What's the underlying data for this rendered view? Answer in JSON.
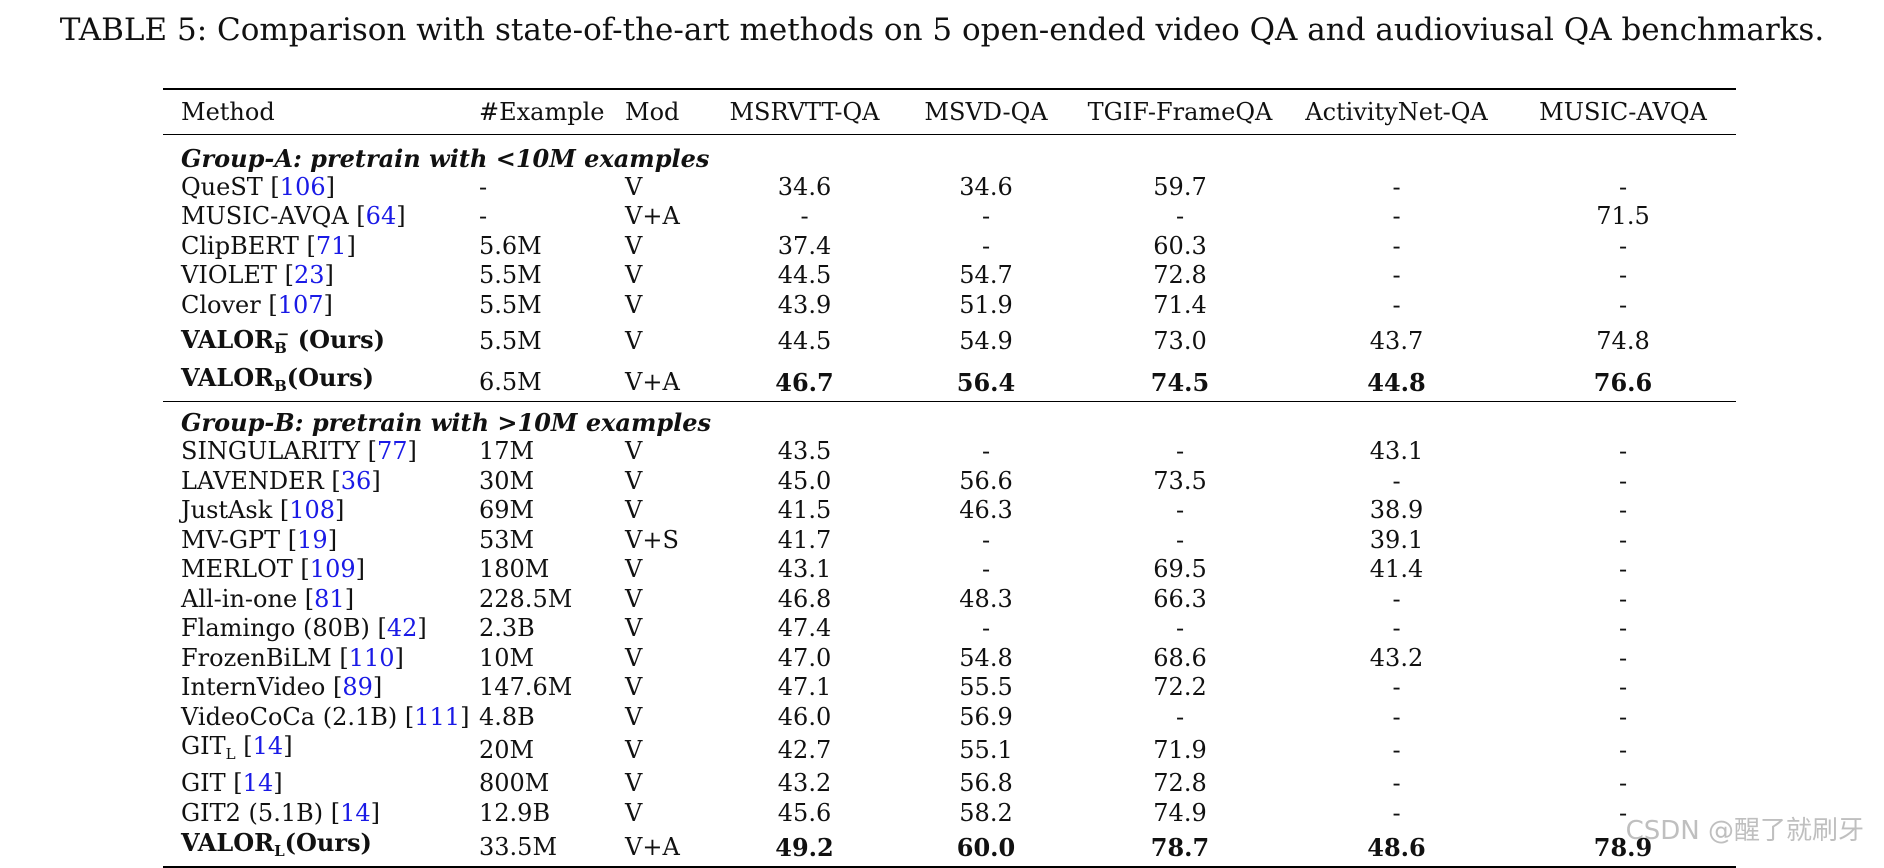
{
  "caption": "TABLE 5: Comparison with state-of-the-art methods on 5 open-ended video QA and audioviusal QA benchmarks.",
  "headers": [
    "Method",
    "#Example",
    "Mod",
    "MSRVTT-QA",
    "MSVD-QA",
    "TGIF-FrameQA",
    "ActivityNet-QA",
    "MUSIC-AVQA"
  ],
  "group_a": {
    "title": "Group-A: pretrain with <10M examples",
    "rows": [
      {
        "name": "QueST",
        "ref": "106",
        "example": "-",
        "mod": "V",
        "vals": [
          "34.6",
          "34.6",
          "59.7",
          "-",
          "-"
        ]
      },
      {
        "name": "MUSIC-AVQA",
        "ref": "64",
        "example": "-",
        "mod": "V+A",
        "vals": [
          "-",
          "-",
          "-",
          "-",
          "71.5"
        ]
      },
      {
        "name": "ClipBERT",
        "ref": "71",
        "example": "5.6M",
        "mod": "V",
        "vals": [
          "37.4",
          "-",
          "60.3",
          "-",
          "-"
        ]
      },
      {
        "name": "VIOLET",
        "ref": "23",
        "example": "5.5M",
        "mod": "V",
        "vals": [
          "44.5",
          "54.7",
          "72.8",
          "-",
          "-"
        ]
      },
      {
        "name": "Clover",
        "ref": "107",
        "example": "5.5M",
        "mod": "V",
        "vals": [
          "43.9",
          "51.9",
          "71.4",
          "-",
          "-"
        ]
      }
    ],
    "ours_minus": {
      "name": "VALOR",
      "sub": "B",
      "sup": "−",
      "suffix": " (Ours)",
      "example": "5.5M",
      "mod": "V",
      "vals": [
        "44.5",
        "54.9",
        "73.0",
        "43.7",
        "74.8"
      ]
    },
    "ours": {
      "name": "VALOR",
      "sub": "B",
      "suffix": "(Ours)",
      "example": "6.5M",
      "mod": "V+A",
      "vals": [
        "46.7",
        "56.4",
        "74.5",
        "44.8",
        "76.6"
      ]
    }
  },
  "group_b": {
    "title": "Group-B: pretrain with >10M examples",
    "rows": [
      {
        "name": "SINGULARITY",
        "ref": "77",
        "example": "17M",
        "mod": "V",
        "vals": [
          "43.5",
          "-",
          "-",
          "43.1",
          "-"
        ]
      },
      {
        "name": "LAVENDER",
        "ref": "36",
        "example": "30M",
        "mod": "V",
        "vals": [
          "45.0",
          "56.6",
          "73.5",
          "-",
          "-"
        ]
      },
      {
        "name": "JustAsk",
        "ref": "108",
        "example": "69M",
        "mod": "V",
        "vals": [
          "41.5",
          "46.3",
          "-",
          "38.9",
          "-"
        ]
      },
      {
        "name": "MV-GPT",
        "ref": "19",
        "example": "53M",
        "mod": "V+S",
        "vals": [
          "41.7",
          "-",
          "-",
          "39.1",
          "-"
        ]
      },
      {
        "name": "MERLOT",
        "ref": "109",
        "example": "180M",
        "mod": "V",
        "vals": [
          "43.1",
          "-",
          "69.5",
          "41.4",
          "-"
        ]
      },
      {
        "name": "All-in-one",
        "ref": "81",
        "example": "228.5M",
        "mod": "V",
        "vals": [
          "46.8",
          "48.3",
          "66.3",
          "-",
          "-"
        ]
      },
      {
        "name": "Flamingo (80B)",
        "ref": "42",
        "example": "2.3B",
        "mod": "V",
        "vals": [
          "47.4",
          "-",
          "-",
          "-",
          "-"
        ]
      },
      {
        "name": "FrozenBiLM",
        "ref": "110",
        "example": "10M",
        "mod": "V",
        "vals": [
          "47.0",
          "54.8",
          "68.6",
          "43.2",
          "-"
        ]
      },
      {
        "name": "InternVideo",
        "ref": "89",
        "example": "147.6M",
        "mod": "V",
        "vals": [
          "47.1",
          "55.5",
          "72.2",
          "-",
          "-"
        ]
      },
      {
        "name": "VideoCoCa (2.1B)",
        "ref": "111",
        "example": "4.8B",
        "mod": "V",
        "vals": [
          "46.0",
          "56.9",
          "-",
          "-",
          "-"
        ]
      },
      {
        "name": "GIT",
        "sub": "L",
        "ref": "14",
        "example": "20M",
        "mod": "V",
        "vals": [
          "42.7",
          "55.1",
          "71.9",
          "-",
          "-"
        ]
      },
      {
        "name": "GIT",
        "ref": "14",
        "example": "800M",
        "mod": "V",
        "vals": [
          "43.2",
          "56.8",
          "72.8",
          "-",
          "-"
        ]
      },
      {
        "name": "GIT2 (5.1B)",
        "ref": "14",
        "example": "12.9B",
        "mod": "V",
        "vals": [
          "45.6",
          "58.2",
          "74.9",
          "-",
          "-"
        ]
      }
    ],
    "ours": {
      "name": "VALOR",
      "sub": "L",
      "suffix": "(Ours)",
      "example": "33.5M",
      "mod": "V+A",
      "vals": [
        "49.2",
        "60.0",
        "78.7",
        "48.6",
        "78.9"
      ]
    }
  },
  "watermark": "CSDN @醒了就刷牙"
}
